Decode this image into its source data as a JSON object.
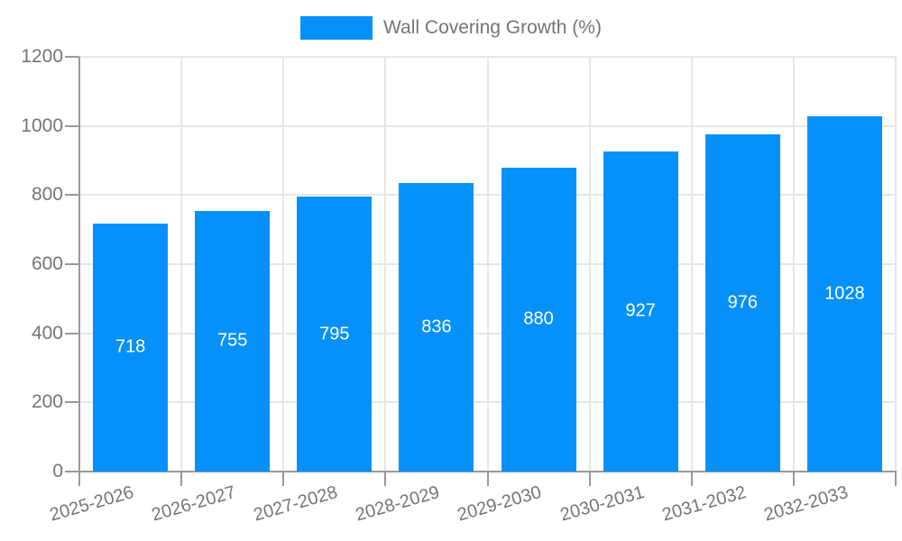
{
  "chart_data": {
    "type": "bar",
    "title": "",
    "legend_label": "Wall Covering Growth (%)",
    "legend_position": "top",
    "categories": [
      "2025-2026",
      "2026-2027",
      "2027-2028",
      "2028-2029",
      "2029-2030",
      "2030-2031",
      "2031-2032",
      "2032-2033"
    ],
    "series": [
      {
        "name": "Wall Covering Growth (%)",
        "values": [
          718,
          755,
          795,
          836,
          880,
          927,
          976,
          1028
        ]
      }
    ],
    "bar_value_labels": [
      "718",
      "755",
      "795",
      "836",
      "880",
      "927",
      "976",
      "1028"
    ],
    "ylim": [
      0,
      1200
    ],
    "yticks": [
      0,
      200,
      400,
      600,
      800,
      1000,
      1200
    ],
    "grid": true,
    "xlabel": "",
    "ylabel": "",
    "colors": {
      "bar": "#0591f9",
      "grid": "#e6e6e6",
      "axis": "#999999",
      "tick_text": "#757575",
      "value_text": "#ffffff"
    }
  }
}
